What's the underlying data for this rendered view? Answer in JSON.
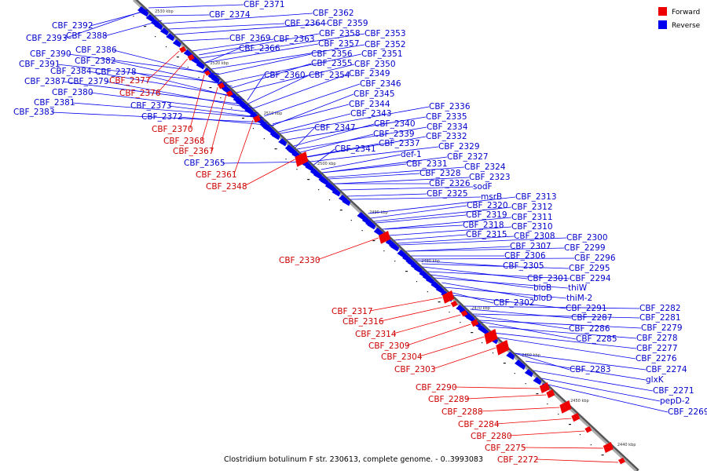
{
  "caption": "Clostridium botulinum F str. 230613, complete genome. - 0..3993083",
  "legend": {
    "forward_label": "Forward",
    "reverse_label": "Reverse",
    "forward_color": "#ee0000",
    "reverse_color": "#0000ee"
  },
  "ticks": [
    "2530 kbp",
    "2520 kbp",
    "2510 kbp",
    "2500 kbp",
    "2490 kbp",
    "2480 kbp",
    "2470 kbp",
    "2460 kbp",
    "2450 kbp",
    "2440 kbp"
  ],
  "reverse_genes": [
    "CBF_2371",
    "CBF_2392",
    "CBF_2374",
    "CBF_2362",
    "CBF_2393",
    "CBF_2388",
    "CBF_2364",
    "CBF_2359",
    "CBF_2369",
    "CBF_2363",
    "CBF_2358",
    "CBF_2353",
    "CBF_2366",
    "CBF_2357",
    "CBF_2352",
    "CBF_2390",
    "CBF_2386",
    "CBF_2356",
    "CBF_2351",
    "CBF_2391",
    "CBF_2382",
    "CBF_2355",
    "CBF_2350",
    "CBF_2384",
    "CBF_2378",
    "CBF_2360",
    "CBF_2354",
    "CBF_2349",
    "CBF_2387",
    "CBF_2379",
    "CBF_2346",
    "CBF_2380",
    "CBF_2345",
    "CBF_2381",
    "CBF_2373",
    "CBF_2344",
    "CBF_2336",
    "CBF_2383",
    "CBF_2343",
    "CBF_2335",
    "CBF_2372",
    "CBF_2340",
    "CBF_2334",
    "CBF_2347",
    "CBF_2339",
    "CBF_2332",
    "CBF_2337",
    "CBF_2329",
    "CBF_2365",
    "CBF_2341",
    "def-1",
    "CBF_2327",
    "CBF_2331",
    "CBF_2324",
    "CBF_2328",
    "CBF_2323",
    "CBF_2326",
    "sodF",
    "CBF_2325",
    "msrB",
    "CBF_2313",
    "CBF_2320",
    "CBF_2312",
    "CBF_2319",
    "CBF_2311",
    "CBF_2318",
    "CBF_2310",
    "CBF_2315",
    "CBF_2308",
    "CBF_2300",
    "CBF_2307",
    "CBF_2299",
    "CBF_2306",
    "CBF_2296",
    "CBF_2305",
    "CBF_2295",
    "CBF_2301",
    "CBF_2294",
    "bioB",
    "thiW",
    "bioD",
    "thiM-2",
    "CBF_2302",
    "CBF_2291",
    "CBF_2282",
    "CBF_2287",
    "CBF_2281",
    "CBF_2286",
    "CBF_2279",
    "CBF_2285",
    "CBF_2278",
    "CBF_2277",
    "CBF_2276",
    "CBF_2283",
    "CBF_2274",
    "glxK",
    "CBF_2271",
    "pepD-2",
    "CBF_2269"
  ],
  "forward_genes": [
    "CBF_2377",
    "CBF_2376",
    "CBF_2370",
    "CBF_2368",
    "CBF_2367",
    "CBF_2361",
    "CBF_2348",
    "CBF_2330",
    "CBF_2317",
    "CBF_2316",
    "CBF_2314",
    "CBF_2309",
    "CBF_2304",
    "CBF_2303",
    "CBF_2290",
    "CBF_2289",
    "CBF_2288",
    "CBF_2284",
    "CBF_2280",
    "CBF_2275",
    "CBF_2272"
  ]
}
